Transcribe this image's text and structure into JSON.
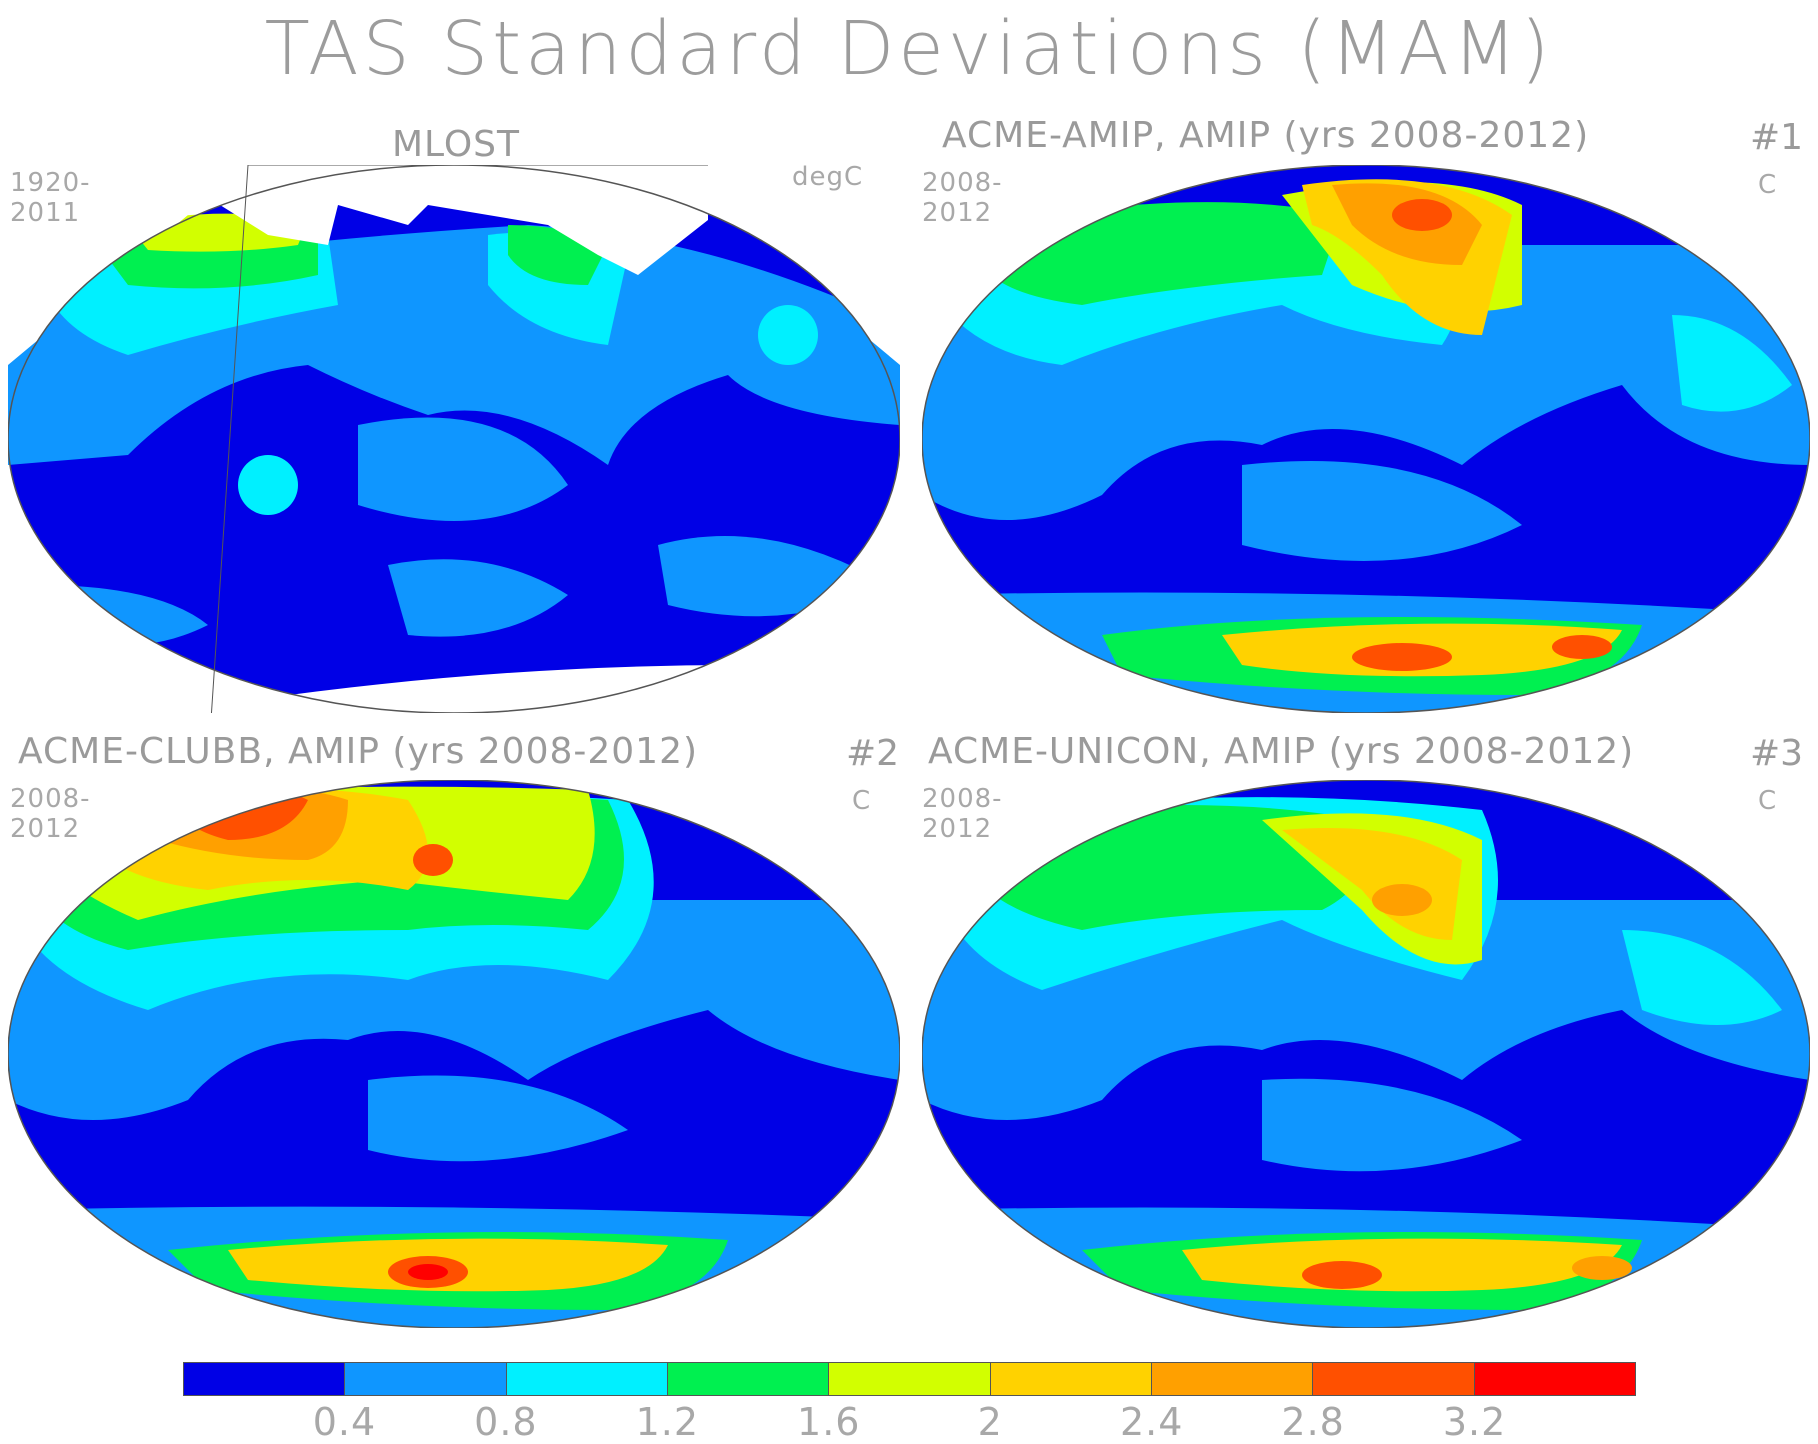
{
  "title": "TAS Standard Deviations (MAM)",
  "panels": [
    {
      "title": "MLOST",
      "number": "",
      "years": "1920-2011",
      "units": "degC",
      "type": "obs"
    },
    {
      "title": "ACME-AMIP, AMIP (yrs 2008-2012)",
      "number": "#1",
      "years": "2008-2012",
      "units": "C",
      "type": "model"
    },
    {
      "title": "ACME-CLUBB, AMIP (yrs 2008-2012)",
      "number": "#2",
      "years": "2008-2012",
      "units": "C",
      "type": "model-warm"
    },
    {
      "title": "ACME-UNICON, AMIP (yrs 2008-2012)",
      "number": "#3",
      "years": "2008-2012",
      "units": "C",
      "type": "model"
    }
  ],
  "colorbar": {
    "colors": [
      "#0000e6",
      "#0f96ff",
      "#00f0ff",
      "#00f050",
      "#d2ff00",
      "#ffd200",
      "#ffa000",
      "#ff5000",
      "#ff0000"
    ],
    "ticks": [
      "0.4",
      "0.8",
      "1.2",
      "1.6",
      "2",
      "2.4",
      "2.8",
      "3.2"
    ]
  }
}
